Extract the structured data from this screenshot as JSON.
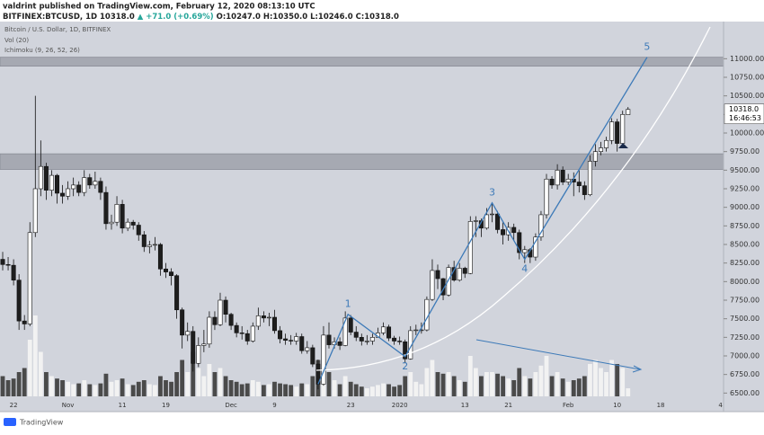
{
  "header": {
    "publisher": "valdrint published on TradingView.com, February 12, 2020 08:13:10 UTC",
    "symbol": "BITFINEX:BTCUSD, 1D",
    "price": "10318.0",
    "change": "▲ +71.0 (+0.69%)",
    "ohlc": "O:10247.0 H:10350.0 L:10246.0 C:10318.0"
  },
  "footer": {
    "brand": "TradingView"
  },
  "chart_data": {
    "type": "candlestick",
    "title": "Bitcoin / U.S. Dollar, 1D, BITFINEX",
    "indicators": [
      "Vol (20)",
      "Ichimoku (9, 26, 52, 26)"
    ],
    "categories": [
      null,
      null,
      "22",
      null,
      null,
      null,
      null,
      null,
      null,
      null,
      null,
      null,
      "Nov",
      null,
      null,
      null,
      null,
      null,
      null,
      null,
      null,
      null,
      "11",
      null,
      null,
      null,
      null,
      null,
      null,
      null,
      "19",
      null,
      null,
      null,
      null,
      null,
      null,
      null,
      null,
      null,
      null,
      null,
      "Dec",
      null,
      null,
      null,
      null,
      null,
      null,
      null,
      "9",
      null,
      null,
      null,
      null,
      null,
      null,
      null,
      null,
      null,
      null,
      null,
      null,
      null,
      "23",
      null,
      null,
      null,
      null,
      null,
      null,
      null,
      null,
      "2020",
      null,
      null,
      null,
      null,
      null,
      null,
      null,
      null,
      null,
      null,
      null,
      "13",
      null,
      null,
      null,
      null,
      null,
      null,
      null,
      "21",
      null,
      null,
      null,
      null,
      null,
      null,
      null,
      null,
      null,
      null,
      "Feb",
      null,
      null,
      null,
      null,
      null,
      null,
      null,
      null,
      "10",
      null,
      null,
      null,
      null,
      null,
      null,
      null,
      "18",
      null,
      null,
      null,
      null,
      null,
      null,
      null,
      null,
      null,
      null,
      "4"
    ],
    "open": [
      8300,
      8230,
      8220,
      8020,
      7470,
      7430,
      8660,
      9250,
      9550,
      9230,
      9430,
      9190,
      9150,
      9250,
      9300,
      9200,
      9400,
      9300,
      9350,
      9200,
      8780,
      8800,
      9040,
      8720,
      8800,
      8760,
      8630,
      8470,
      8490,
      8500,
      8170,
      8130,
      8080,
      7620,
      7280,
      7330,
      6900,
      7140,
      7160,
      7520,
      7420,
      7750,
      7560,
      7410,
      7310,
      7300,
      7200,
      7400,
      7540,
      7510,
      7520,
      7340,
      7230,
      7210,
      7200,
      7260,
      7070,
      7110,
      6890,
      6620,
      7280,
      7150,
      7190,
      7140,
      7510,
      7320,
      7250,
      7200,
      7200,
      7250,
      7310,
      7390,
      7240,
      7200,
      7190,
      6960,
      7340,
      7350,
      7350,
      7760,
      8150,
      8040,
      7820,
      8190,
      8020,
      8180,
      8110,
      8810,
      8820,
      8720,
      8900,
      8910,
      8700,
      8630,
      8730,
      8660,
      8390,
      8430,
      8330,
      8600,
      8900,
      9380,
      9300,
      9500,
      9340,
      9380,
      9340,
      9290,
      9170,
      9620,
      9750,
      9800,
      9900,
      10150,
      9860,
      10247,
      null,
      null,
      null,
      null,
      null,
      null,
      null,
      null,
      null,
      null,
      null,
      null,
      null,
      null,
      null,
      null,
      null
    ],
    "high": [
      8400,
      8330,
      8300,
      8100,
      7550,
      8800,
      10500,
      9900,
      9600,
      9500,
      9450,
      9300,
      9350,
      9400,
      9350,
      9500,
      9450,
      9480,
      9400,
      9280,
      8900,
      9150,
      9100,
      8850,
      8830,
      8800,
      8680,
      8550,
      8600,
      8520,
      8250,
      8180,
      8100,
      7650,
      7450,
      7400,
      7250,
      7350,
      7600,
      7600,
      7850,
      7800,
      7580,
      7450,
      7400,
      7350,
      7450,
      7650,
      7600,
      7580,
      7620,
      7400,
      7300,
      7280,
      7310,
      7300,
      7200,
      7150,
      6950,
      7400,
      7450,
      7250,
      7250,
      7600,
      7550,
      7400,
      7300,
      7280,
      7300,
      7380,
      7450,
      7420,
      7270,
      7260,
      7220,
      7400,
      7420,
      7450,
      7800,
      8300,
      8230,
      8050,
      8230,
      8280,
      8250,
      8200,
      8880,
      8880,
      8850,
      8990,
      9050,
      8950,
      8800,
      8800,
      8780,
      8700,
      8480,
      8450,
      8650,
      8950,
      9450,
      9420,
      9580,
      9550,
      9450,
      9470,
      9500,
      9350,
      9700,
      9850,
      9880,
      9950,
      10200,
      10190,
      10300,
      10350,
      null,
      null,
      null,
      null,
      null,
      null,
      null,
      null,
      null,
      null,
      null,
      null,
      null,
      null,
      null,
      null,
      null
    ],
    "low": [
      8150,
      8150,
      7950,
      7350,
      7350,
      7400,
      8600,
      9150,
      9100,
      9150,
      9050,
      9050,
      9100,
      9150,
      9150,
      9150,
      9250,
      9250,
      9100,
      8700,
      8700,
      8750,
      8650,
      8680,
      8700,
      8550,
      8400,
      8380,
      8420,
      8080,
      8050,
      7950,
      7500,
      7100,
      7200,
      6790,
      6850,
      7050,
      7110,
      7350,
      7400,
      7450,
      7350,
      7250,
      7220,
      7150,
      7180,
      7350,
      7450,
      7400,
      7300,
      7170,
      7150,
      7150,
      7150,
      7030,
      7030,
      6850,
      6550,
      6600,
      7100,
      7100,
      7080,
      7130,
      7280,
      7200,
      7140,
      7150,
      7150,
      7250,
      7280,
      7200,
      7150,
      7150,
      6900,
      6950,
      7280,
      7300,
      7330,
      7740,
      7900,
      7750,
      7800,
      8000,
      8000,
      8050,
      8100,
      8600,
      8600,
      8700,
      8800,
      8650,
      8500,
      8550,
      8550,
      8300,
      8250,
      8250,
      8280,
      8550,
      8850,
      9250,
      9240,
      9300,
      9300,
      9150,
      9200,
      9100,
      9150,
      9550,
      9700,
      9750,
      9850,
      9750,
      9820,
      10246,
      null,
      null,
      null,
      null,
      null,
      null,
      null,
      null,
      null,
      null,
      null,
      null,
      null,
      null,
      null,
      null,
      null
    ],
    "close": [
      8230,
      8220,
      8020,
      7470,
      7430,
      8660,
      9250,
      9550,
      9230,
      9430,
      9190,
      9150,
      9250,
      9300,
      9200,
      9400,
      9300,
      9350,
      9200,
      8780,
      8800,
      9040,
      8720,
      8800,
      8760,
      8630,
      8470,
      8490,
      8500,
      8170,
      8130,
      8080,
      7620,
      7280,
      7330,
      6900,
      7140,
      7160,
      7520,
      7420,
      7750,
      7560,
      7410,
      7310,
      7300,
      7200,
      7400,
      7540,
      7510,
      7520,
      7340,
      7230,
      7210,
      7200,
      7260,
      7070,
      7110,
      6890,
      6620,
      7280,
      7150,
      7190,
      7140,
      7510,
      7320,
      7250,
      7200,
      7200,
      7250,
      7310,
      7390,
      7240,
      7200,
      7190,
      6960,
      7340,
      7350,
      7350,
      7760,
      8150,
      8040,
      7820,
      8190,
      8020,
      8180,
      8110,
      8810,
      8820,
      8720,
      8900,
      8910,
      8700,
      8630,
      8730,
      8660,
      8390,
      8430,
      8330,
      8600,
      8900,
      9380,
      9300,
      9500,
      9340,
      9380,
      9340,
      9290,
      9170,
      9620,
      9750,
      9800,
      9900,
      10150,
      9860,
      10250,
      10318,
      null,
      null,
      null,
      null,
      null,
      null,
      null,
      null,
      null,
      null,
      null,
      null,
      null,
      null,
      null,
      null,
      null
    ],
    "volume": [
      25,
      20,
      22,
      30,
      35,
      70,
      100,
      55,
      30,
      25,
      22,
      20,
      18,
      15,
      16,
      20,
      15,
      14,
      16,
      28,
      18,
      20,
      22,
      15,
      14,
      18,
      20,
      15,
      14,
      25,
      20,
      18,
      30,
      45,
      30,
      55,
      35,
      25,
      40,
      30,
      35,
      25,
      20,
      18,
      15,
      16,
      20,
      18,
      14,
      15,
      18,
      16,
      15,
      14,
      12,
      16,
      15,
      25,
      45,
      55,
      30,
      20,
      15,
      25,
      18,
      15,
      12,
      10,
      12,
      14,
      16,
      15,
      12,
      14,
      25,
      30,
      18,
      15,
      35,
      45,
      30,
      28,
      30,
      25,
      20,
      18,
      50,
      35,
      25,
      30,
      30,
      28,
      25,
      22,
      20,
      35,
      25,
      22,
      30,
      38,
      50,
      25,
      30,
      22,
      18,
      20,
      22,
      25,
      40,
      45,
      35,
      30,
      45,
      40,
      35,
      10,
      null,
      null,
      null,
      null,
      null,
      null,
      null,
      null,
      null,
      null,
      null,
      null,
      null,
      null,
      null,
      null,
      null
    ],
    "up_color": "#ffffff",
    "down_color": "#1e1e1e",
    "volume_up_color": "#f2f2f2",
    "volume_down_color": "#4a4a4a",
    "ylim": [
      6250,
      11500
    ],
    "yticks": [
      {
        "value": 6500,
        "label": "6500.00"
      },
      {
        "value": 6750,
        "label": "6750.00"
      },
      {
        "value": 7000,
        "label": "7000.00"
      },
      {
        "value": 7250,
        "label": "7250.00"
      },
      {
        "value": 7500,
        "label": "7500.00"
      },
      {
        "value": 7750,
        "label": "7750.00"
      },
      {
        "value": 8000,
        "label": "8000.00"
      },
      {
        "value": 8250,
        "label": "8250.00"
      },
      {
        "value": 8500,
        "label": "8500.00"
      },
      {
        "value": 8750,
        "label": "8750.00"
      },
      {
        "value": 9000,
        "label": "9000.00"
      },
      {
        "value": 9250,
        "label": "9250.00"
      },
      {
        "value": 9500,
        "label": "9500.00"
      },
      {
        "value": 9750,
        "label": "9750.00"
      },
      {
        "value": 10000,
        "label": "10000.00"
      },
      {
        "value": 10250,
        "label": "10250.00"
      },
      {
        "value": 10500,
        "label": "10500.00"
      },
      {
        "value": 10750,
        "label": "10750.00"
      },
      {
        "value": 11000,
        "label": "11000.00"
      }
    ],
    "zones": [
      [
        9510,
        9720
      ],
      [
        10900,
        11020
      ]
    ],
    "wave": {
      "x": [
        58,
        63.5,
        74,
        90,
        96,
        118.5
      ],
      "y": [
        6620,
        7560,
        6990,
        9060,
        8300,
        11020
      ],
      "labels": [
        null,
        "1",
        "2",
        "3",
        "4",
        "5"
      ],
      "color": "#3d7ab8"
    },
    "last_price_label": "10318.0",
    "countdown": "16:46:53"
  }
}
